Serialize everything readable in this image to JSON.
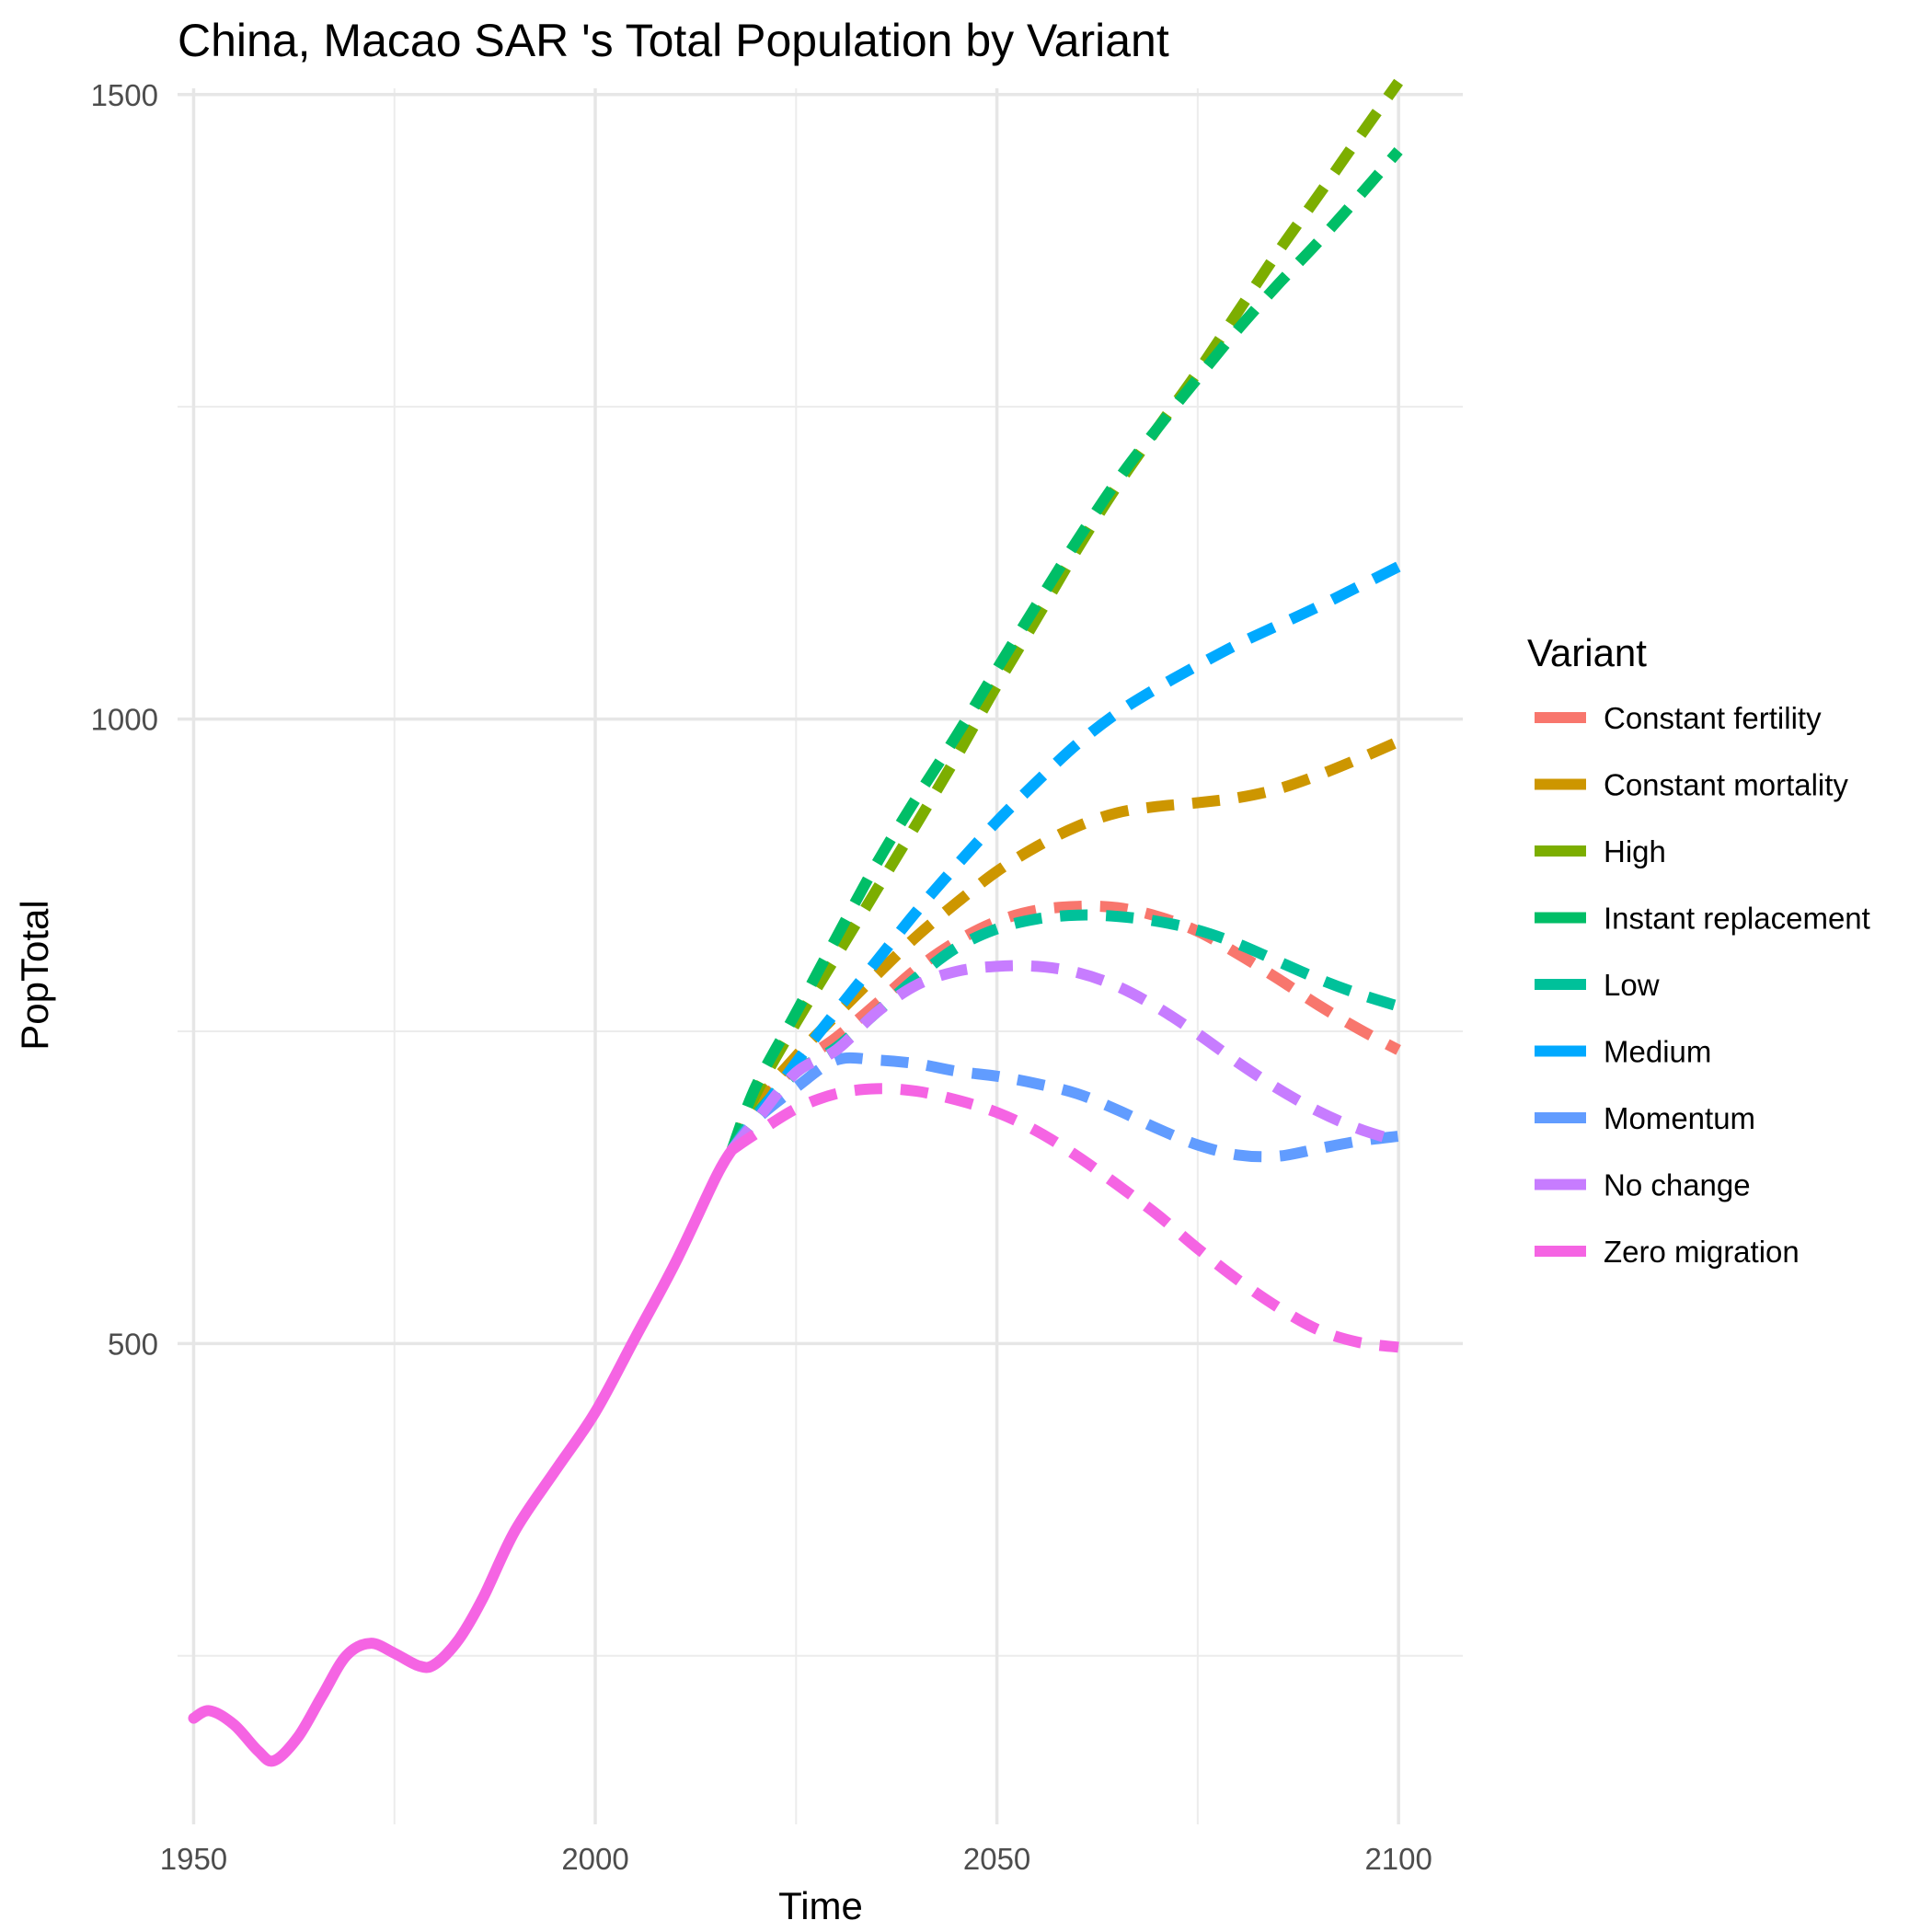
{
  "chart_data": {
    "type": "line",
    "title": "China, Macao SAR 's Total Population by Variant",
    "xlabel": "Time",
    "ylabel": "PopTotal",
    "xlim": [
      1948,
      2108
    ],
    "ylim": [
      115,
      1505
    ],
    "x_ticks": [
      1950,
      2000,
      2050,
      2100
    ],
    "y_ticks": [
      500,
      1000,
      1500
    ],
    "x_minor_ticks": [
      1975,
      2025,
      2075
    ],
    "y_minor_ticks": [
      250,
      750,
      1250
    ],
    "grid": true,
    "legend": {
      "title": "Variant",
      "placement": "right"
    },
    "historical": {
      "series_ref": "Zero migration",
      "x": [
        1950,
        1952,
        1955,
        1958,
        1960,
        1963,
        1966,
        1969,
        1972,
        1975,
        1978,
        1980,
        1983,
        1986,
        1990,
        1995,
        2000,
        2005,
        2010,
        2015,
        2017
      ],
      "y": [
        200,
        206,
        195,
        174,
        166,
        185,
        218,
        250,
        260,
        252,
        242,
        243,
        263,
        296,
        350,
        398,
        445,
        505,
        565,
        633,
        655
      ]
    },
    "series": [
      {
        "name": "Constant fertility",
        "color": "#F8766D",
        "x": [
          2017,
          2020,
          2025,
          2030,
          2035,
          2040,
          2045,
          2050,
          2055,
          2060,
          2065,
          2070,
          2075,
          2080,
          2085,
          2090,
          2095,
          2100
        ],
        "y": [
          655,
          688,
          722,
          745,
          772,
          800,
          822,
          838,
          847,
          850,
          849,
          842,
          830,
          812,
          792,
          771,
          752,
          735
        ]
      },
      {
        "name": "Constant mortality",
        "color": "#CD9600",
        "x": [
          2017,
          2020,
          2025,
          2030,
          2035,
          2040,
          2045,
          2050,
          2055,
          2060,
          2065,
          2070,
          2075,
          2080,
          2085,
          2090,
          2095,
          2100
        ],
        "y": [
          655,
          692,
          730,
          763,
          795,
          826,
          853,
          878,
          898,
          914,
          925,
          930,
          933,
          937,
          944,
          955,
          968,
          982
        ]
      },
      {
        "name": "High",
        "color": "#7CAE00",
        "x": [
          2017,
          2020,
          2025,
          2030,
          2035,
          2040,
          2045,
          2050,
          2055,
          2060,
          2065,
          2070,
          2075,
          2080,
          2085,
          2090,
          2095,
          2100
        ],
        "y": [
          655,
          700,
          757,
          810,
          863,
          916,
          970,
          1027,
          1081,
          1136,
          1187,
          1233,
          1278,
          1326,
          1374,
          1419,
          1465,
          1510
        ]
      },
      {
        "name": "Instant replacement",
        "color": "#00BE67",
        "x": [
          2017,
          2020,
          2025,
          2030,
          2035,
          2040,
          2045,
          2050,
          2055,
          2060,
          2065,
          2070,
          2075,
          2080,
          2085,
          2090,
          2095,
          2100
        ],
        "y": [
          655,
          706,
          765,
          825,
          884,
          937,
          987,
          1040,
          1092,
          1143,
          1191,
          1233,
          1273,
          1312,
          1348,
          1382,
          1418,
          1455
        ]
      },
      {
        "name": "Low",
        "color": "#00C19A",
        "x": [
          2017,
          2020,
          2025,
          2030,
          2035,
          2040,
          2045,
          2050,
          2055,
          2060,
          2065,
          2070,
          2075,
          2080,
          2085,
          2090,
          2095,
          2100
        ],
        "y": [
          655,
          683,
          717,
          737,
          765,
          793,
          817,
          832,
          840,
          843,
          842,
          838,
          831,
          820,
          806,
          792,
          780,
          770
        ]
      },
      {
        "name": "Medium",
        "color": "#00A9FF",
        "x": [
          2017,
          2020,
          2025,
          2030,
          2035,
          2040,
          2045,
          2050,
          2055,
          2060,
          2065,
          2070,
          2075,
          2080,
          2085,
          2090,
          2095,
          2100
        ],
        "y": [
          655,
          680,
          725,
          766,
          806,
          846,
          883,
          918,
          950,
          980,
          1005,
          1025,
          1043,
          1060,
          1075,
          1090,
          1106,
          1122
        ]
      },
      {
        "name": "Momentum",
        "color": "#619CFF",
        "x": [
          2017,
          2020,
          2025,
          2030,
          2035,
          2040,
          2045,
          2050,
          2055,
          2060,
          2065,
          2070,
          2075,
          2080,
          2085,
          2090,
          2095,
          2100
        ],
        "y": [
          655,
          679,
          705,
          727,
          727,
          724,
          718,
          714,
          708,
          700,
          687,
          672,
          659,
          651,
          650,
          656,
          662,
          666
        ]
      },
      {
        "name": "No change",
        "color": "#C77CFF",
        "x": [
          2017,
          2020,
          2025,
          2030,
          2035,
          2040,
          2045,
          2050,
          2055,
          2060,
          2065,
          2070,
          2075,
          2080,
          2085,
          2090,
          2095,
          2100
        ],
        "y": [
          655,
          678,
          717,
          735,
          765,
          787,
          798,
          802,
          802,
          797,
          786,
          769,
          748,
          725,
          704,
          686,
          672,
          662
        ]
      },
      {
        "name": "Zero migration",
        "color": "#F564E3",
        "x": [
          2017,
          2020,
          2025,
          2030,
          2035,
          2040,
          2045,
          2050,
          2055,
          2060,
          2065,
          2070,
          2075,
          2080,
          2085,
          2090,
          2095,
          2100
        ],
        "y": [
          655,
          668,
          688,
          700,
          704,
          702,
          695,
          685,
          670,
          650,
          627,
          603,
          576,
          551,
          529,
          511,
          501,
          497
        ]
      }
    ]
  }
}
